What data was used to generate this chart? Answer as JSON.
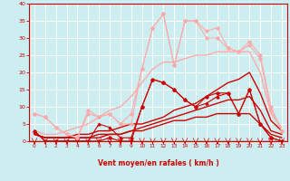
{
  "xlabel": "Vent moyen/en rafales ( km/h )",
  "xlim": [
    -0.5,
    23.5
  ],
  "ylim": [
    0,
    40
  ],
  "yticks": [
    0,
    5,
    10,
    15,
    20,
    25,
    30,
    35,
    40
  ],
  "xticks": [
    0,
    1,
    2,
    3,
    4,
    5,
    6,
    7,
    8,
    9,
    10,
    11,
    12,
    13,
    14,
    15,
    16,
    17,
    18,
    19,
    20,
    21,
    22,
    23
  ],
  "background_color": "#cdeef0",
  "grid_color": "#ffffff",
  "lines": [
    {
      "x": [
        0,
        1,
        2,
        3,
        4,
        5,
        6,
        7,
        8,
        9,
        10,
        11,
        12,
        13,
        14,
        15,
        16,
        17,
        18,
        19,
        20,
        21,
        22,
        23
      ],
      "y": [
        3,
        0,
        0,
        0,
        0,
        0,
        0,
        1,
        0,
        0,
        10,
        18,
        17,
        15,
        12,
        10,
        13,
        14,
        14,
        8,
        15,
        5,
        1,
        0
      ],
      "color": "#cc0000",
      "lw": 0.8,
      "marker": "D",
      "ms": 1.8
    },
    {
      "x": [
        0,
        1,
        2,
        3,
        4,
        5,
        6,
        7,
        8,
        9,
        10,
        11,
        12,
        13,
        14,
        15,
        16,
        17,
        18,
        19,
        20,
        21,
        22,
        23
      ],
      "y": [
        3,
        0,
        0,
        0,
        0,
        0,
        5,
        4,
        1,
        1,
        10,
        18,
        17,
        15,
        12,
        10,
        11,
        13,
        14,
        8,
        15,
        5,
        1,
        0
      ],
      "color": "#cc0000",
      "lw": 0.8,
      "marker": "^",
      "ms": 2.0
    },
    {
      "x": [
        0,
        1,
        2,
        3,
        4,
        5,
        6,
        7,
        8,
        9,
        10,
        11,
        12,
        13,
        14,
        15,
        16,
        17,
        18,
        19,
        20,
        21,
        22,
        23
      ],
      "y": [
        2,
        1,
        1,
        1,
        1,
        1,
        1,
        2,
        2,
        3,
        3,
        4,
        5,
        6,
        6,
        7,
        7,
        8,
        8,
        8,
        8,
        5,
        2,
        1
      ],
      "color": "#cc0000",
      "lw": 1.0,
      "marker": null,
      "ms": 0
    },
    {
      "x": [
        0,
        1,
        2,
        3,
        4,
        5,
        6,
        7,
        8,
        9,
        10,
        11,
        12,
        13,
        14,
        15,
        16,
        17,
        18,
        19,
        20,
        21,
        22,
        23
      ],
      "y": [
        2,
        1,
        1,
        1,
        1,
        1,
        2,
        2,
        2,
        3,
        4,
        5,
        6,
        7,
        8,
        9,
        10,
        11,
        12,
        12,
        13,
        9,
        3,
        2
      ],
      "color": "#cc0000",
      "lw": 1.0,
      "marker": null,
      "ms": 0
    },
    {
      "x": [
        0,
        1,
        2,
        3,
        4,
        5,
        6,
        7,
        8,
        9,
        10,
        11,
        12,
        13,
        14,
        15,
        16,
        17,
        18,
        19,
        20,
        21,
        22,
        23
      ],
      "y": [
        2,
        1,
        1,
        1,
        2,
        2,
        3,
        3,
        4,
        5,
        5,
        6,
        7,
        9,
        10,
        11,
        13,
        15,
        17,
        18,
        20,
        14,
        6,
        3
      ],
      "color": "#cc0000",
      "lw": 1.0,
      "marker": null,
      "ms": 0
    },
    {
      "x": [
        0,
        1,
        2,
        3,
        4,
        5,
        6,
        7,
        8,
        9,
        10,
        11,
        12,
        13,
        14,
        15,
        16,
        17,
        18,
        19,
        20,
        21,
        22,
        23
      ],
      "y": [
        8,
        7,
        4,
        2,
        1,
        9,
        7,
        8,
        5,
        8,
        21,
        33,
        37,
        22,
        35,
        35,
        32,
        33,
        27,
        26,
        29,
        25,
        10,
        3
      ],
      "color": "#ffaaaa",
      "lw": 0.8,
      "marker": "D",
      "ms": 1.8
    },
    {
      "x": [
        0,
        1,
        2,
        3,
        4,
        5,
        6,
        7,
        8,
        9,
        10,
        11,
        12,
        13,
        14,
        15,
        16,
        17,
        18,
        19,
        20,
        21,
        22,
        23
      ],
      "y": [
        8,
        7,
        4,
        2,
        1,
        8,
        7,
        8,
        5,
        5,
        21,
        33,
        37,
        22,
        35,
        35,
        30,
        30,
        27,
        26,
        28,
        24,
        9,
        3
      ],
      "color": "#ffaaaa",
      "lw": 0.8,
      "marker": "D",
      "ms": 1.8
    },
    {
      "x": [
        0,
        1,
        2,
        3,
        4,
        5,
        6,
        7,
        8,
        9,
        10,
        11,
        12,
        13,
        14,
        15,
        16,
        17,
        18,
        19,
        20,
        21,
        22,
        23
      ],
      "y": [
        3,
        2,
        2,
        3,
        4,
        5,
        7,
        9,
        10,
        13,
        17,
        21,
        23,
        23,
        24,
        25,
        25,
        26,
        26,
        26,
        26,
        20,
        8,
        4
      ],
      "color": "#ffaaaa",
      "lw": 1.0,
      "marker": null,
      "ms": 0
    }
  ],
  "axis_color": "#cc0000",
  "tick_color": "#cc0000",
  "label_color": "#cc0000"
}
